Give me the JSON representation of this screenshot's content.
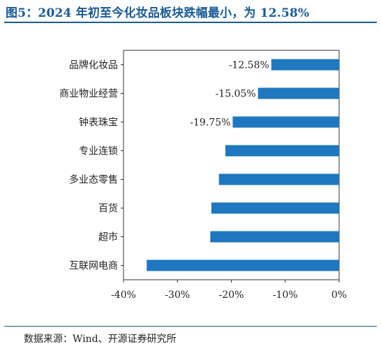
{
  "title": "图5：2024 年初至今化妆品板块跌幅最小，为 12.58%",
  "source": "数据来源：Wind、开源证券研究所",
  "colors": {
    "bar": "#1f77c0",
    "title": "#1a5a96",
    "axis": "#333333",
    "text": "#222222"
  },
  "chart_data": {
    "type": "bar",
    "orientation": "horizontal",
    "categories": [
      "品牌化妆品",
      "商业物业经营",
      "钟表珠宝",
      "专业连锁",
      "多业态零售",
      "百货",
      "超市",
      "互联网电商"
    ],
    "values": [
      -12.58,
      -15.05,
      -19.75,
      -21.1,
      -22.3,
      -23.7,
      -23.9,
      -35.7
    ],
    "data_labels": [
      "-12.58%",
      "-15.05%",
      "-19.75%",
      null,
      null,
      null,
      null,
      null
    ],
    "xlim": [
      -40,
      0
    ],
    "xticks": [
      -40,
      -30,
      -20,
      -10,
      0
    ],
    "xtick_labels": [
      "-40%",
      "-30%",
      "-20%",
      "-10%",
      "0%"
    ],
    "grid": false,
    "legend": "none",
    "xlabel": "",
    "ylabel": ""
  }
}
